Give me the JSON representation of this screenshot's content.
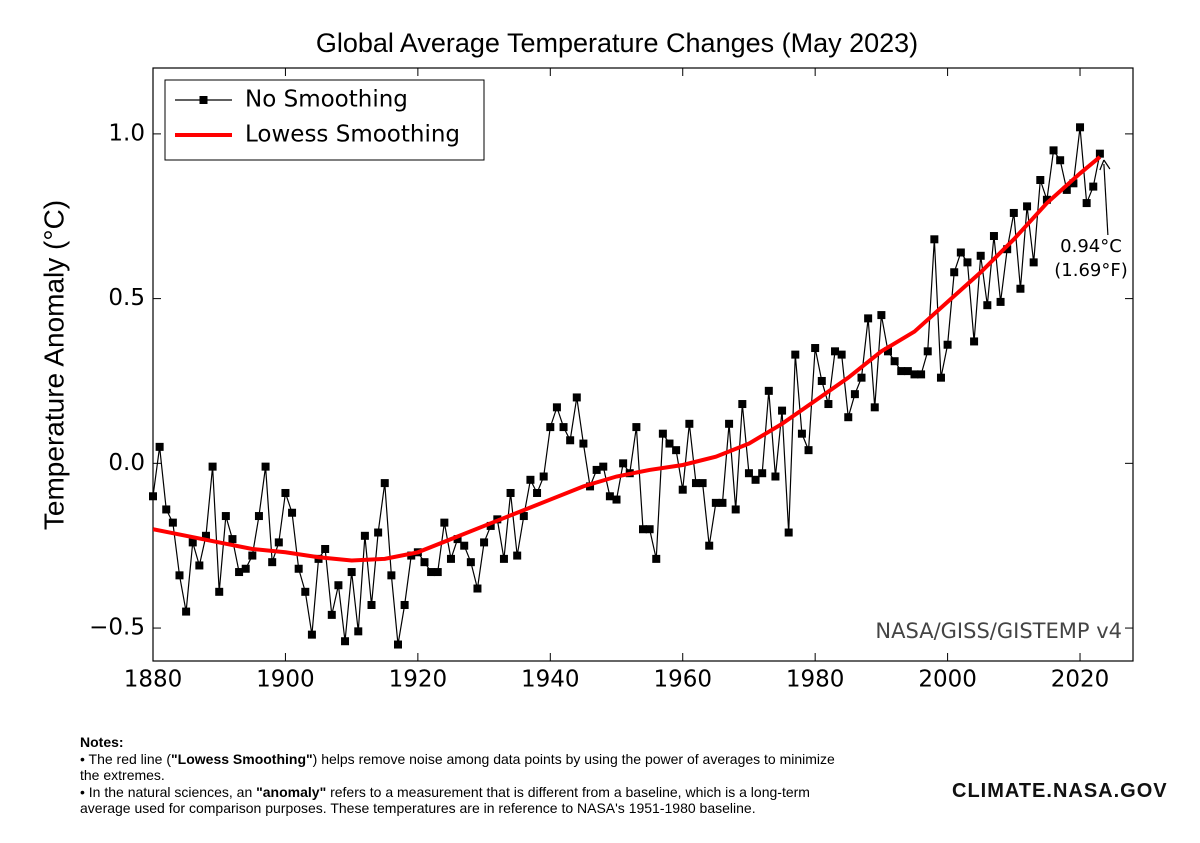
{
  "chart_data": {
    "type": "line",
    "title": "Global Average Temperature Changes (May 2023)",
    "ylabel": "Temperature Anomaly (°C)",
    "watermark": "NASA/GISS/GISTEMP v4",
    "annotations": [
      "0.94°C",
      "(1.69°F)"
    ],
    "legend": "upper left",
    "xlim": [
      1880,
      2028
    ],
    "xticks": [
      1880,
      1900,
      1920,
      1940,
      1960,
      1980,
      2000,
      2020
    ],
    "ylim": [
      -0.6,
      1.2
    ],
    "yticks": [
      {
        "value": -0.5,
        "label": "−0.5"
      },
      {
        "value": 0,
        "label": "0.0"
      },
      0.5,
      {
        "value": 1,
        "label": "1.0"
      }
    ],
    "x": [
      1880,
      1881,
      1882,
      1883,
      1884,
      1885,
      1886,
      1887,
      1888,
      1889,
      1890,
      1891,
      1892,
      1893,
      1894,
      1895,
      1896,
      1897,
      1898,
      1899,
      1900,
      1901,
      1902,
      1903,
      1904,
      1905,
      1906,
      1907,
      1908,
      1909,
      1910,
      1911,
      1912,
      1913,
      1914,
      1915,
      1916,
      1917,
      1918,
      1919,
      1920,
      1921,
      1922,
      1923,
      1924,
      1925,
      1926,
      1927,
      1928,
      1929,
      1930,
      1931,
      1932,
      1933,
      1934,
      1935,
      1936,
      1937,
      1938,
      1939,
      1940,
      1941,
      1942,
      1943,
      1944,
      1945,
      1946,
      1947,
      1948,
      1949,
      1950,
      1951,
      1952,
      1953,
      1954,
      1955,
      1956,
      1957,
      1958,
      1959,
      1960,
      1961,
      1962,
      1963,
      1964,
      1965,
      1966,
      1967,
      1968,
      1969,
      1970,
      1971,
      1972,
      1973,
      1974,
      1975,
      1976,
      1977,
      1978,
      1979,
      1980,
      1981,
      1982,
      1983,
      1984,
      1985,
      1986,
      1987,
      1988,
      1989,
      1990,
      1991,
      1992,
      1993,
      1994,
      1995,
      1996,
      1997,
      1998,
      1999,
      2000,
      2001,
      2002,
      2003,
      2004,
      2005,
      2006,
      2007,
      2008,
      2009,
      2010,
      2011,
      2012,
      2013,
      2014,
      2015,
      2016,
      2017,
      2018,
      2019,
      2020,
      2021,
      2022,
      2023
    ],
    "series": [
      {
        "name": "No Smoothing",
        "color": "#000000",
        "marker": "square",
        "values": [
          -0.1,
          0.05,
          -0.14,
          -0.18,
          -0.34,
          -0.45,
          -0.24,
          -0.31,
          -0.22,
          -0.01,
          -0.39,
          -0.16,
          -0.23,
          -0.33,
          -0.32,
          -0.28,
          -0.16,
          -0.01,
          -0.3,
          -0.24,
          -0.09,
          -0.15,
          -0.32,
          -0.39,
          -0.52,
          -0.29,
          -0.26,
          -0.46,
          -0.37,
          -0.54,
          -0.33,
          -0.51,
          -0.22,
          -0.43,
          -0.21,
          -0.06,
          -0.34,
          -0.55,
          -0.43,
          -0.28,
          -0.27,
          -0.3,
          -0.33,
          -0.33,
          -0.18,
          -0.29,
          -0.23,
          -0.25,
          -0.3,
          -0.38,
          -0.24,
          -0.19,
          -0.17,
          -0.29,
          -0.09,
          -0.28,
          -0.16,
          -0.05,
          -0.09,
          -0.04,
          0.11,
          0.17,
          0.11,
          0.07,
          0.2,
          0.06,
          -0.07,
          -0.02,
          -0.01,
          -0.1,
          -0.11,
          0.0,
          -0.03,
          0.11,
          -0.2,
          -0.2,
          -0.29,
          0.09,
          0.06,
          0.04,
          -0.08,
          0.12,
          -0.06,
          -0.06,
          -0.25,
          -0.12,
          -0.12,
          0.12,
          -0.14,
          0.18,
          -0.03,
          -0.05,
          -0.03,
          0.22,
          -0.04,
          0.16,
          -0.21,
          0.33,
          0.09,
          0.04,
          0.35,
          0.25,
          0.18,
          0.34,
          0.33,
          0.14,
          0.21,
          0.26,
          0.44,
          0.17,
          0.45,
          0.34,
          0.31,
          0.28,
          0.28,
          0.27,
          0.27,
          0.34,
          0.68,
          0.26,
          0.36,
          0.58,
          0.64,
          0.61,
          0.37,
          0.63,
          0.48,
          0.69,
          0.49,
          0.65,
          0.76,
          0.53,
          0.78,
          0.61,
          0.86,
          0.8,
          0.95,
          0.92,
          0.83,
          0.85,
          1.02,
          0.79,
          0.84,
          0.94
        ]
      },
      {
        "name": "Lowess Smoothing",
        "color": "#ff0000",
        "x": [
          1880,
          1885,
          1890,
          1895,
          1900,
          1905,
          1910,
          1915,
          1920,
          1925,
          1930,
          1935,
          1940,
          1945,
          1950,
          1955,
          1960,
          1965,
          1970,
          1975,
          1980,
          1985,
          1990,
          1995,
          2000,
          2005,
          2010,
          2015,
          2020,
          2023
        ],
        "values": [
          -0.2,
          -0.22,
          -0.24,
          -0.26,
          -0.27,
          -0.285,
          -0.295,
          -0.29,
          -0.27,
          -0.23,
          -0.19,
          -0.15,
          -0.11,
          -0.07,
          -0.04,
          -0.02,
          -0.005,
          0.02,
          0.06,
          0.12,
          0.19,
          0.26,
          0.34,
          0.4,
          0.49,
          0.58,
          0.68,
          0.79,
          0.88,
          0.93
        ]
      }
    ]
  },
  "notes": {
    "heading": "Notes:",
    "items": [
      [
        "• The red line (",
        "\"Lowess Smoothing\"",
        ") helps remove noise among data points by using the power of averages to minimize the extremes."
      ],
      [
        "• In the natural sciences, an ",
        "\"anomaly\"",
        " refers to a measurement that is different from a baseline, which is a long-term average used for comparison purposes. These temperatures are in reference to NASA's 1951-1980 baseline."
      ]
    ]
  },
  "logo": "CLIMATE.NASA.GOV"
}
